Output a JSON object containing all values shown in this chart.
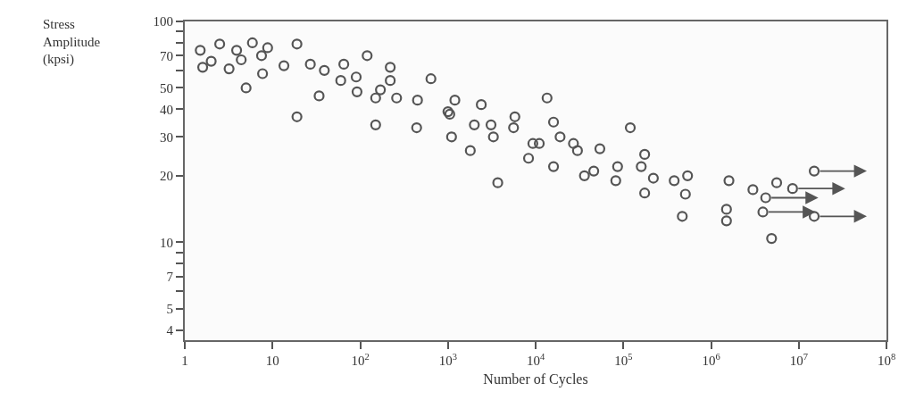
{
  "chart_data": {
    "type": "scatter",
    "xlabel": "Number of Cycles",
    "ylabel": "Stress\nAmplitude\n(kpsi)",
    "log": "xy",
    "marker": "circle",
    "xlim": [
      1,
      100000000
    ],
    "ylim": [
      3.6,
      100
    ],
    "xticks": [
      1,
      10,
      {
        "value": 100,
        "label": "10$^{2}$"
      },
      {
        "value": 1000,
        "label": "10$^{3}$"
      },
      {
        "value": 10000,
        "label": "10$^{4}$"
      },
      {
        "value": 100000,
        "label": "10$^{5}$"
      },
      {
        "value": 1000000,
        "label": "10$^{6}$"
      },
      {
        "value": 10000000,
        "label": "10$^{7}$"
      },
      {
        "value": 100000000,
        "label": "10$^{8}$"
      }
    ],
    "yticks": [
      4,
      5,
      {
        "value": 6,
        "label": null
      },
      7,
      {
        "value": 8,
        "label": null
      },
      {
        "value": 9,
        "label": null
      },
      10,
      20,
      30,
      40,
      50,
      {
        "value": 60,
        "label": null
      },
      70,
      {
        "value": 80,
        "label": null
      },
      {
        "value": 90,
        "label": null
      },
      100
    ],
    "series": [
      {
        "color": "#555555",
        "x": [
          1.5,
          2.5,
          3.9,
          5.9,
          8.8,
          7.5,
          4.4,
          2.0,
          1.6,
          3.2,
          5.0,
          7.7,
          13.5,
          19,
          19,
          27,
          39,
          65,
          60,
          34,
          90,
          92,
          120,
          170,
          150,
          220,
          220,
          260,
          150,
          450,
          440,
          640,
          1000,
          1050,
          1200,
          2400,
          2000,
          3100,
          1100,
          1800,
          3300,
          5800,
          5600,
          3700,
          13500,
          16000,
          19000,
          9300,
          11000,
          8300,
          16000,
          27000,
          30000,
          36000,
          46000,
          54000,
          86000,
          82000,
          120000,
          175000,
          160000,
          220000,
          175000,
          380000,
          540000,
          510000,
          470000,
          1600000,
          1500000,
          1500000,
          3000000,
          5600000,
          4900000
        ],
        "values": [
          74,
          79,
          74,
          80,
          76,
          70,
          67,
          66,
          62,
          61,
          50,
          58,
          63,
          79,
          37,
          64,
          60,
          64,
          54,
          46,
          56,
          48,
          70,
          49,
          45,
          62,
          54,
          45,
          34,
          44,
          33,
          55,
          39,
          38,
          44,
          42,
          34,
          34,
          30,
          26,
          30,
          37,
          33,
          18.6,
          45,
          35,
          30,
          28,
          28,
          24,
          22,
          28,
          26,
          20,
          21,
          26.5,
          22,
          19,
          33,
          25,
          22,
          19.5,
          16.7,
          19,
          20,
          16.5,
          13.1,
          19,
          14.1,
          12.5,
          17.3,
          18.6,
          10.4
        ]
      },
      {
        "color": "#555555",
        "x": [
          15000000,
          8500000,
          4200000,
          3900000,
          15000000
        ],
        "values": [
          21,
          17.5,
          15.9,
          13.7,
          13.1
        ]
      }
    ]
  }
}
